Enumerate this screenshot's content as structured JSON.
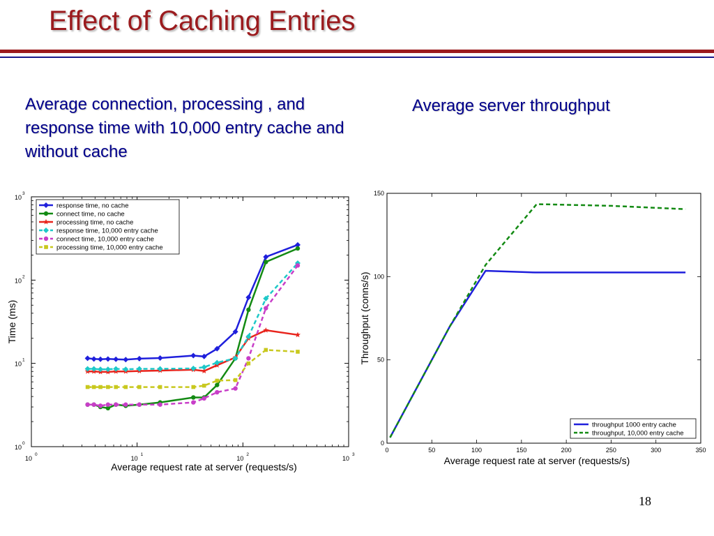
{
  "slide": {
    "title": "Effect of Caching Entries",
    "caption_left": "Average connection, processing , and response time with 10,000 entry cache and without cache",
    "caption_right": "Average server throughput",
    "page_number": "18"
  },
  "chart_data": [
    {
      "type": "line",
      "xscale": "log",
      "yscale": "log",
      "xlim": [
        1,
        1000
      ],
      "ylim": [
        1,
        1000
      ],
      "xlabel": "Average request rate at server (requests/s)",
      "ylabel": "Time (ms)",
      "xticks": [
        {
          "value": 1,
          "base": "10",
          "exp": "0"
        },
        {
          "value": 10,
          "base": "10",
          "exp": "1"
        },
        {
          "value": 100,
          "base": "10",
          "exp": "2"
        },
        {
          "value": 1000,
          "base": "10",
          "exp": "3"
        }
      ],
      "yticks": [
        {
          "value": 1,
          "base": "10",
          "exp": "0"
        },
        {
          "value": 10,
          "base": "10",
          "exp": "1"
        },
        {
          "value": 100,
          "base": "10",
          "exp": "2"
        },
        {
          "value": 1000,
          "base": "10",
          "exp": "3"
        }
      ],
      "grid": false,
      "legend_position": "top-left",
      "series": [
        {
          "name": "response time, no cache",
          "color": "#1f1fdc",
          "dash": false,
          "marker": "diamond",
          "x": [
            3.4,
            3.9,
            4.5,
            5.3,
            6.3,
            7.8,
            10.5,
            16.5,
            34,
            43,
            57,
            85,
            113,
            165,
            330
          ],
          "y": [
            11.5,
            11.3,
            11.2,
            11.3,
            11.2,
            11.1,
            11.4,
            11.6,
            12.4,
            12.1,
            15,
            24,
            62,
            190,
            265
          ]
        },
        {
          "name": "connect time, no cache",
          "color": "#138a13",
          "dash": false,
          "marker": "circle",
          "x": [
            3.4,
            3.9,
            4.5,
            5.3,
            6.3,
            7.8,
            10.5,
            16.5,
            34,
            43,
            57,
            85,
            113,
            165,
            330
          ],
          "y": [
            3.2,
            3.2,
            3.0,
            2.9,
            3.2,
            3.1,
            3.2,
            3.4,
            3.9,
            3.9,
            5.5,
            11.5,
            44,
            165,
            240
          ]
        },
        {
          "name": "processing time, no cache",
          "color": "#e8241c",
          "dash": false,
          "marker": "star",
          "x": [
            3.4,
            3.9,
            4.5,
            5.3,
            6.3,
            7.8,
            10.5,
            16.5,
            34,
            43,
            57,
            85,
            113,
            165,
            330
          ],
          "y": [
            8.0,
            8.0,
            7.9,
            7.9,
            8.0,
            8.0,
            8.1,
            8.2,
            8.4,
            8.1,
            9.5,
            11.8,
            20,
            25,
            22
          ]
        },
        {
          "name": "response time, 10,000 entry cache",
          "color": "#1ec8c8",
          "dash": true,
          "marker": "diamond",
          "x": [
            3.4,
            3.9,
            4.5,
            5.3,
            6.3,
            7.8,
            10.5,
            16.5,
            34,
            43,
            57,
            85,
            113,
            165,
            330
          ],
          "y": [
            8.6,
            8.6,
            8.5,
            8.5,
            8.6,
            8.5,
            8.6,
            8.6,
            8.7,
            9.0,
            10.2,
            11.5,
            21,
            60,
            160
          ]
        },
        {
          "name": "connect time, 10,000 entry cache",
          "color": "#c83ec8",
          "dash": true,
          "marker": "circle",
          "x": [
            3.4,
            3.9,
            4.5,
            5.3,
            6.3,
            7.8,
            10.5,
            16.5,
            34,
            43,
            57,
            85,
            113,
            165,
            330
          ],
          "y": [
            3.2,
            3.2,
            3.1,
            3.2,
            3.2,
            3.2,
            3.2,
            3.2,
            3.4,
            3.8,
            4.5,
            5.0,
            11.5,
            46,
            150
          ]
        },
        {
          "name": "processing time, 10,000 entry cache",
          "color": "#c8c81e",
          "dash": true,
          "marker": "square",
          "x": [
            3.4,
            3.9,
            4.5,
            5.3,
            6.3,
            7.8,
            10.5,
            16.5,
            34,
            43,
            57,
            85,
            113,
            165,
            330
          ],
          "y": [
            5.2,
            5.2,
            5.2,
            5.2,
            5.2,
            5.2,
            5.2,
            5.2,
            5.2,
            5.4,
            6.2,
            6.3,
            10,
            14.5,
            13.8
          ]
        }
      ]
    },
    {
      "type": "line",
      "xlim": [
        0,
        350
      ],
      "ylim": [
        0,
        150
      ],
      "xticks": [
        0,
        50,
        100,
        150,
        200,
        250,
        300,
        350
      ],
      "yticks": [
        0,
        50,
        100,
        150
      ],
      "xlabel": "Average request rate at server (requests/s)",
      "ylabel": "Throughput (conns/s)",
      "grid": false,
      "legend_position": "bottom-right",
      "series": [
        {
          "name": "throughput 1000 entry cache",
          "color": "#1f1fdc",
          "dash": false,
          "x": [
            3.4,
            35,
            70,
            110,
            165,
            250,
            333
          ],
          "y": [
            3.4,
            35,
            70,
            103.5,
            102.5,
            102.5,
            102.5
          ]
        },
        {
          "name": "throughput, 10,000 entry cache",
          "color": "#138a13",
          "dash": true,
          "x": [
            3.4,
            35,
            70,
            110,
            167,
            250,
            333
          ],
          "y": [
            3.4,
            35,
            70,
            107,
            143.5,
            142.5,
            140.5
          ]
        }
      ]
    }
  ]
}
